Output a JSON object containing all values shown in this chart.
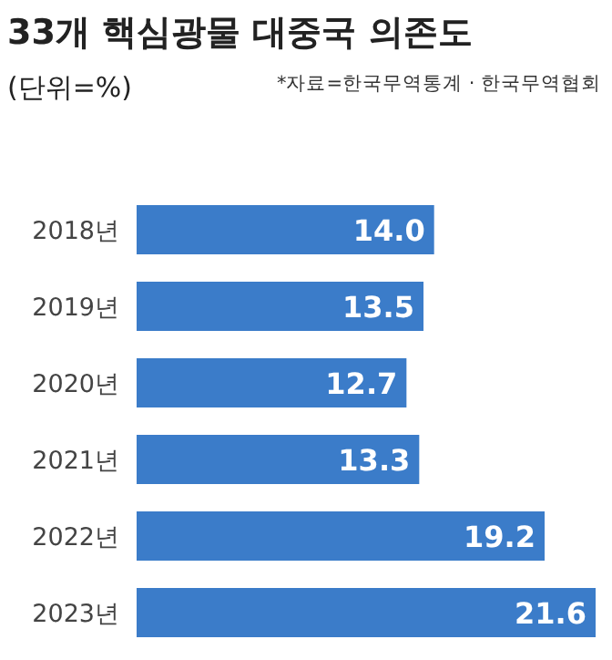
{
  "chart_data": {
    "type": "bar",
    "orientation": "horizontal",
    "title": "33개 핵심광물 대중국 의존도",
    "subtitle": "(단위=%)",
    "annotations": [
      "*자료=한국무역통계 · 한국무역협회"
    ],
    "categories": [
      "2018년",
      "2019년",
      "2020년",
      "2021년",
      "2022년",
      "2023년"
    ],
    "values": [
      14.0,
      13.5,
      12.7,
      13.3,
      19.2,
      21.6
    ],
    "value_labels": [
      "14.0",
      "13.5",
      "12.7",
      "13.3",
      "19.2",
      "21.6"
    ],
    "color": "#3b7cc9"
  }
}
